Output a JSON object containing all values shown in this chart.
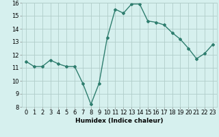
{
  "x": [
    0,
    1,
    2,
    3,
    4,
    5,
    6,
    7,
    8,
    9,
    10,
    11,
    12,
    13,
    14,
    15,
    16,
    17,
    18,
    19,
    20,
    21,
    22,
    23
  ],
  "y": [
    11.5,
    11.1,
    11.1,
    11.6,
    11.3,
    11.1,
    11.1,
    9.8,
    8.2,
    9.8,
    13.3,
    15.5,
    15.2,
    15.9,
    15.9,
    14.6,
    14.5,
    14.3,
    13.7,
    13.2,
    12.5,
    11.7,
    12.1,
    12.8
  ],
  "line_color": "#2e7d6e",
  "marker": "D",
  "markersize": 2.0,
  "linewidth": 1.0,
  "bg_color": "#d6f0ee",
  "grid_color": "#b0cdc9",
  "xlabel": "Humidex (Indice chaleur)",
  "xlim": [
    -0.5,
    23.5
  ],
  "ylim": [
    8,
    16
  ],
  "yticks": [
    8,
    9,
    10,
    11,
    12,
    13,
    14,
    15,
    16
  ],
  "xticks": [
    0,
    1,
    2,
    3,
    4,
    5,
    6,
    7,
    8,
    9,
    10,
    11,
    12,
    13,
    14,
    15,
    16,
    17,
    18,
    19,
    20,
    21,
    22,
    23
  ],
  "label_fontsize": 6.5,
  "tick_fontsize": 6.0
}
